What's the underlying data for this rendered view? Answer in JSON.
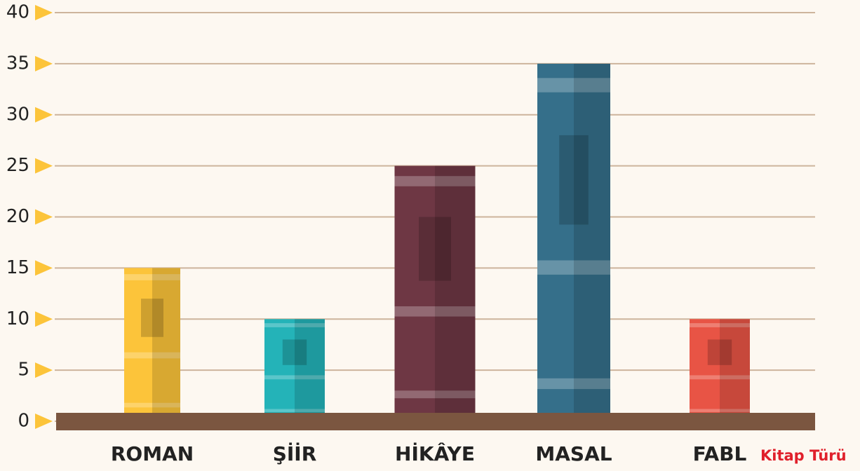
{
  "chart_data": {
    "type": "bar",
    "x_label": "Kitap Türü",
    "categories": [
      "ROMAN",
      "ŞİİR",
      "HİKÂYE",
      "MASAL",
      "FABL"
    ],
    "values": [
      15,
      10,
      25,
      35,
      10
    ],
    "colors": [
      "#fcc43a",
      "#24b3b8",
      "#6e3744",
      "#356f8a",
      "#e85445"
    ],
    "ylim": [
      0,
      40
    ],
    "yticks": [
      0,
      5,
      10,
      15,
      20,
      25,
      30,
      35,
      40
    ],
    "grid": true
  }
}
